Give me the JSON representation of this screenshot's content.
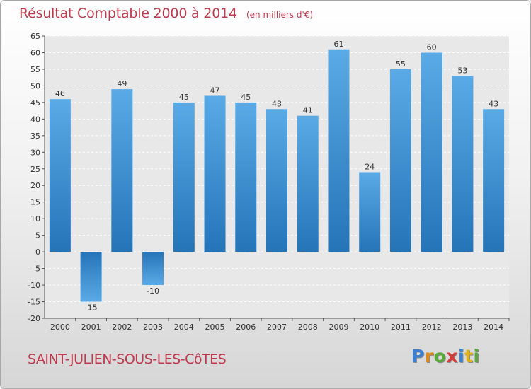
{
  "header": {
    "title": "Résultat Comptable 2000 à 2014",
    "subtitle": "(en milliers d'€)"
  },
  "footer": {
    "commune": "SAINT-JULIEN-SOUS-LES-CôTES",
    "logo_letters": [
      "P",
      "r",
      "o",
      "x",
      "i",
      "t",
      "i"
    ],
    "logo_colors": [
      "#3a7fd0",
      "#e08a1a",
      "#58a83a",
      "#d83a3a",
      "#3a7fd0",
      "#e0b21a",
      "#58a83a"
    ]
  },
  "colors": {
    "bar_light": "#5aaae6",
    "bar_dark": "#2574b8",
    "text": "#c03a4e"
  },
  "chart_data": {
    "type": "bar",
    "categories": [
      "2000",
      "2001",
      "2002",
      "2003",
      "2004",
      "2005",
      "2006",
      "2007",
      "2008",
      "2009",
      "2010",
      "2011",
      "2012",
      "2013",
      "2014"
    ],
    "values": [
      46,
      -15,
      49,
      -10,
      45,
      47,
      45,
      43,
      41,
      61,
      24,
      55,
      60,
      53,
      43
    ],
    "data_labels": [
      "46",
      "-15",
      "49",
      "-10",
      "45",
      "47",
      "45",
      "43",
      "41",
      "61",
      "24",
      "55",
      "60",
      "53",
      "43"
    ],
    "yticks": [
      65,
      60,
      55,
      50,
      45,
      40,
      35,
      30,
      25,
      20,
      15,
      10,
      5,
      0,
      -5,
      -10,
      -15,
      -20
    ],
    "ylim": [
      -20,
      65
    ],
    "grid": true,
    "legend": "none"
  }
}
